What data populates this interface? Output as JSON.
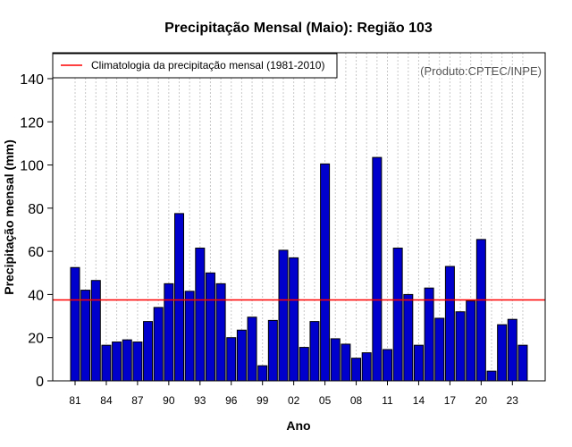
{
  "chart_data": {
    "type": "bar",
    "title": "Precipitação Mensal (Maio): Região 103",
    "xlabel": "Ano",
    "ylabel": "Precipitação mensal (mm)",
    "source_note": "(Produto:CPTEC/INPE)",
    "ylim": [
      0,
      152
    ],
    "yticks": [
      0,
      20,
      40,
      60,
      80,
      100,
      120,
      140
    ],
    "xtick_labels": [
      "81",
      "84",
      "87",
      "90",
      "93",
      "96",
      "99",
      "02",
      "05",
      "08",
      "11",
      "14",
      "17",
      "20",
      "23"
    ],
    "categories": [
      "1981",
      "1982",
      "1983",
      "1984",
      "1985",
      "1986",
      "1987",
      "1988",
      "1989",
      "1990",
      "1991",
      "1992",
      "1993",
      "1994",
      "1995",
      "1996",
      "1997",
      "1998",
      "1999",
      "2000",
      "2001",
      "2002",
      "2003",
      "2004",
      "2005",
      "2006",
      "2007",
      "2008",
      "2009",
      "2010",
      "2011",
      "2012",
      "2013",
      "2014",
      "2015",
      "2016",
      "2017",
      "2018",
      "2019",
      "2020",
      "2021",
      "2022",
      "2023",
      "2024"
    ],
    "series": [
      {
        "name": "Precipitação mensal",
        "color": "#0000cd",
        "values": [
          52.5,
          42,
          46.5,
          16.5,
          18,
          19,
          18,
          27.5,
          34,
          45,
          77.5,
          41.5,
          61.5,
          50,
          45,
          20,
          23.5,
          29.5,
          7,
          28,
          60.5,
          57,
          15.5,
          27.5,
          100.5,
          19.5,
          17,
          10.5,
          13,
          103.5,
          14.5,
          61.5,
          40,
          16.5,
          43,
          29,
          53,
          32,
          37,
          65.5,
          4.5,
          26,
          28.5,
          16.5
        ]
      }
    ],
    "reference_line": {
      "label": "Climatologia da precipitação mensal (1981-2010)",
      "value": 37.5,
      "color": "#ff0000"
    },
    "grid": "vertical dotted",
    "legend_position": "top-left"
  }
}
